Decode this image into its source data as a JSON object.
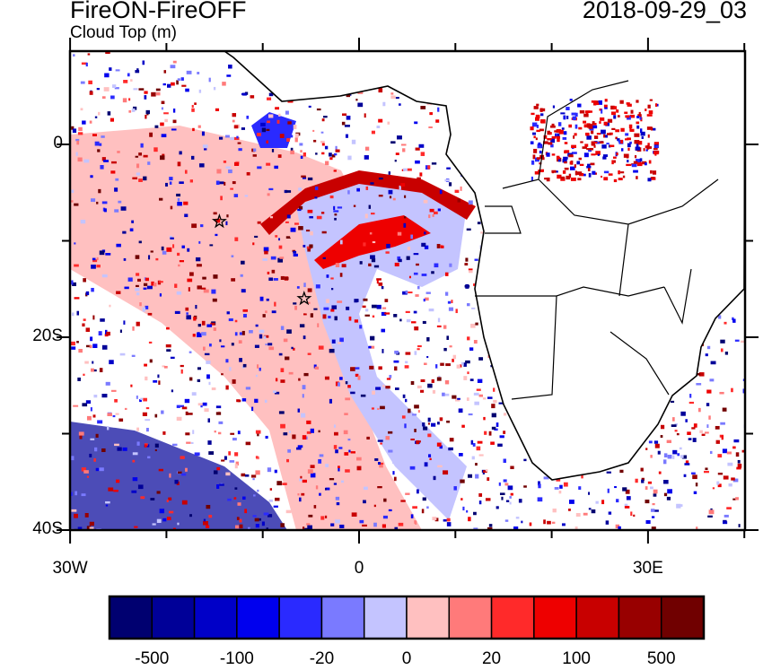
{
  "title": "FireON-FireOFF",
  "subtitle": "Cloud Top (m)",
  "date": "2018-09-29_03",
  "map": {
    "lon_range": [
      -30,
      40
    ],
    "lat_range": [
      -40,
      9.7
    ],
    "x_ticks": [
      {
        "lon": -30,
        "label": "30W"
      },
      {
        "lon": 0,
        "label": "0"
      },
      {
        "lon": 30,
        "label": "30E"
      }
    ],
    "y_ticks": [
      {
        "lat": 0,
        "label": "0"
      },
      {
        "lat": -20,
        "label": "20S"
      },
      {
        "lat": -40,
        "label": "40S"
      }
    ],
    "markers": [
      {
        "name": "star",
        "lon": -14.5,
        "lat": -8
      },
      {
        "name": "star",
        "lon": -5.7,
        "lat": -16
      }
    ]
  },
  "colorbar": {
    "colors": [
      "#000070",
      "#000098",
      "#0000c8",
      "#0000ee",
      "#2a2aff",
      "#7a7aff",
      "#c4c4ff",
      "#ffc0c0",
      "#ff7a7a",
      "#ff2a2a",
      "#ee0000",
      "#c80000",
      "#980000",
      "#700000"
    ],
    "labels": [
      {
        "boundary": 1,
        "text": "-500"
      },
      {
        "boundary": 3,
        "text": "-100"
      },
      {
        "boundary": 5,
        "text": "-20"
      },
      {
        "boundary": 7,
        "text": "0"
      },
      {
        "boundary": 9,
        "text": "20"
      },
      {
        "boundary": 11,
        "text": "100"
      },
      {
        "boundary": 13,
        "text": "500"
      }
    ]
  }
}
